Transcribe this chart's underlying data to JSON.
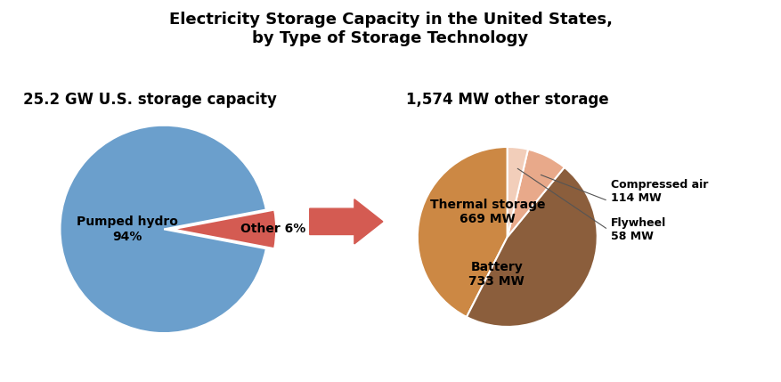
{
  "title": "Electricity Storage Capacity in the United States,\nby Type of Storage Technology",
  "title_fontsize": 13,
  "title_fontweight": "bold",
  "left_label": "25.2 GW U.S. storage capacity",
  "right_label": "1,574 MW other storage",
  "sublabel_fontsize": 12,
  "sublabel_fontweight": "bold",
  "pie1_values": [
    94,
    6
  ],
  "pie1_colors": [
    "#6B9FCC",
    "#D45B52"
  ],
  "pie1_startangle": 180,
  "pie2_values": [
    669,
    733,
    114,
    58
  ],
  "pie2_colors": [
    "#CC8844",
    "#8B5E3C",
    "#E8A98A",
    "#F2CEBA"
  ],
  "pie2_startangle": 90,
  "arrow_color": "#D45B52",
  "background_color": "#FFFFFF",
  "label_fontsize": 10,
  "label_fontweight": "bold",
  "small_label_fontsize": 9,
  "small_label_fontweight": "bold"
}
